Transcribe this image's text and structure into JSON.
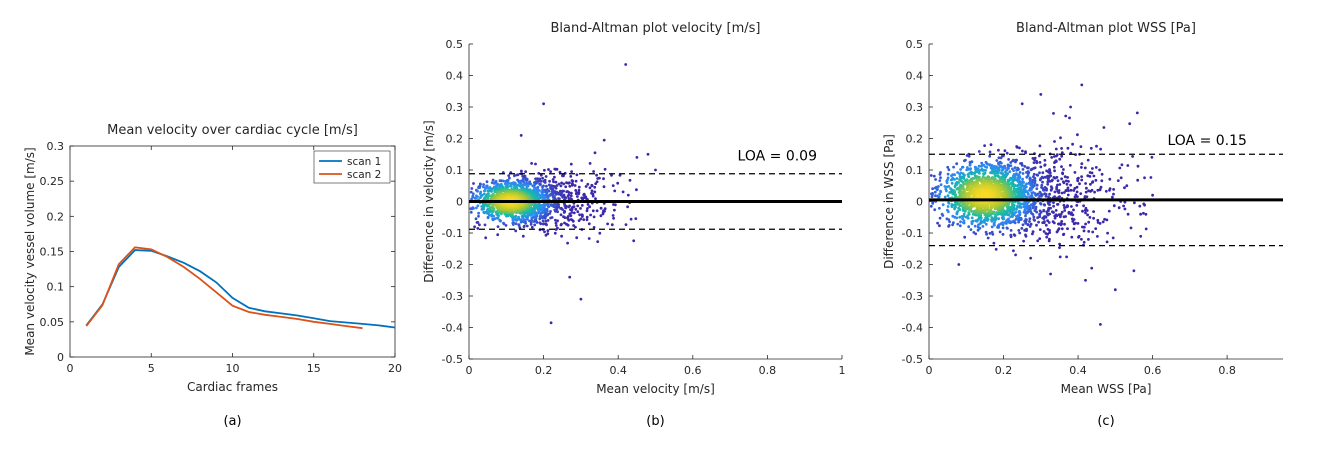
{
  "chart_data": [
    {
      "type": "line",
      "title": "Mean velocity over cardiac cycle [m/s]",
      "xlabel": "Cardiac frames",
      "ylabel": "Mean velocity vessel volume [m/s]",
      "xlim": [
        0,
        20
      ],
      "ylim": [
        0,
        0.3
      ],
      "xticks": [
        0,
        5,
        10,
        15,
        20
      ],
      "yticks": [
        0,
        0.05,
        0.1,
        0.15,
        0.2,
        0.25,
        0.3
      ],
      "xtick_labels": [
        "0",
        "5",
        "10",
        "15",
        "20"
      ],
      "ytick_labels": [
        "0",
        "0.05",
        "0.1",
        "0.15",
        "0.2",
        "0.25",
        "0.3"
      ],
      "legend_position": "top-right",
      "caption": "(a)",
      "series": [
        {
          "name": "scan 1",
          "color": "#0072BD",
          "x": [
            1,
            2,
            3,
            4,
            5,
            6,
            7,
            8,
            9,
            10,
            11,
            12,
            13,
            14,
            15,
            16,
            17,
            18,
            19,
            20
          ],
          "y": [
            0.045,
            0.075,
            0.128,
            0.152,
            0.151,
            0.143,
            0.134,
            0.122,
            0.106,
            0.084,
            0.07,
            0.065,
            0.062,
            0.059,
            0.055,
            0.051,
            0.049,
            0.047,
            0.045,
            0.042
          ]
        },
        {
          "name": "scan 2",
          "color": "#D95319",
          "x": [
            1,
            2,
            3,
            4,
            5,
            6,
            7,
            8,
            9,
            10,
            11,
            12,
            13,
            14,
            15,
            16,
            17,
            18
          ],
          "y": [
            0.044,
            0.074,
            0.132,
            0.156,
            0.153,
            0.142,
            0.128,
            0.111,
            0.092,
            0.073,
            0.064,
            0.06,
            0.057,
            0.054,
            0.05,
            0.047,
            0.044,
            0.041
          ]
        }
      ]
    },
    {
      "type": "scatter",
      "title": "Bland-Altman plot velocity [m/s]",
      "xlabel": "Mean velocity [m/s]",
      "ylabel": "Difference in velocity [m/s]",
      "xlim": [
        0,
        1
      ],
      "ylim": [
        -0.5,
        0.5
      ],
      "xticks": [
        0,
        0.2,
        0.4,
        0.6,
        0.8,
        1
      ],
      "yticks": [
        -0.5,
        -0.4,
        -0.3,
        -0.2,
        -0.1,
        0,
        0.1,
        0.2,
        0.3,
        0.4,
        0.5
      ],
      "xtick_labels": [
        "0",
        "0.2",
        "0.4",
        "0.6",
        "0.8",
        "1"
      ],
      "ytick_labels": [
        "-0.5",
        "-0.4",
        "-0.3",
        "-0.2",
        "-0.1",
        "0",
        "0.1",
        "0.2",
        "0.3",
        "0.4",
        "0.5"
      ],
      "mean_difference": 0,
      "loa_upper": 0.088,
      "loa_lower": -0.088,
      "loa_label": "LOA = 0.09",
      "loa_label_at": [
        0.72,
        0.13
      ],
      "density_center": [
        0.11,
        0.0
      ],
      "outliers": [
        [
          0.42,
          0.435
        ],
        [
          0.2,
          0.31
        ],
        [
          0.22,
          -0.385
        ],
        [
          0.3,
          -0.31
        ],
        [
          0.27,
          -0.24
        ],
        [
          0.14,
          0.21
        ],
        [
          0.45,
          0.14
        ],
        [
          0.48,
          0.15
        ],
        [
          0.5,
          0.1
        ]
      ],
      "caption": "(b)"
    },
    {
      "type": "scatter",
      "title": "Bland-Altman plot WSS [Pa]",
      "xlabel": "Mean WSS [Pa]",
      "ylabel": "Difference in WSS [Pa]",
      "xlim": [
        0,
        0.95
      ],
      "ylim": [
        -0.5,
        0.5
      ],
      "xticks": [
        0,
        0.2,
        0.4,
        0.6,
        0.8
      ],
      "yticks": [
        -0.5,
        -0.4,
        -0.3,
        -0.2,
        -0.1,
        0,
        0.1,
        0.2,
        0.3,
        0.4,
        0.5
      ],
      "xtick_labels": [
        "0",
        "0.2",
        "0.4",
        "0.6",
        "0.8"
      ],
      "ytick_labels": [
        "-0.5",
        "-0.4",
        "-0.3",
        "-0.2",
        "-0.1",
        "0",
        "0.1",
        "0.2",
        "0.3",
        "0.4",
        "0.5"
      ],
      "mean_difference": 0.005,
      "loa_upper": 0.15,
      "loa_lower": -0.14,
      "loa_label": "LOA = 0.15",
      "loa_label_at": [
        0.64,
        0.18
      ],
      "density_center": [
        0.15,
        0.02
      ],
      "outliers": [
        [
          0.41,
          0.37
        ],
        [
          0.3,
          0.34
        ],
        [
          0.25,
          0.31
        ],
        [
          0.38,
          0.3
        ],
        [
          0.46,
          -0.39
        ],
        [
          0.42,
          -0.25
        ],
        [
          0.5,
          -0.28
        ],
        [
          0.55,
          -0.22
        ],
        [
          0.6,
          0.02
        ],
        [
          0.08,
          -0.2
        ]
      ],
      "caption": "(c)"
    }
  ]
}
